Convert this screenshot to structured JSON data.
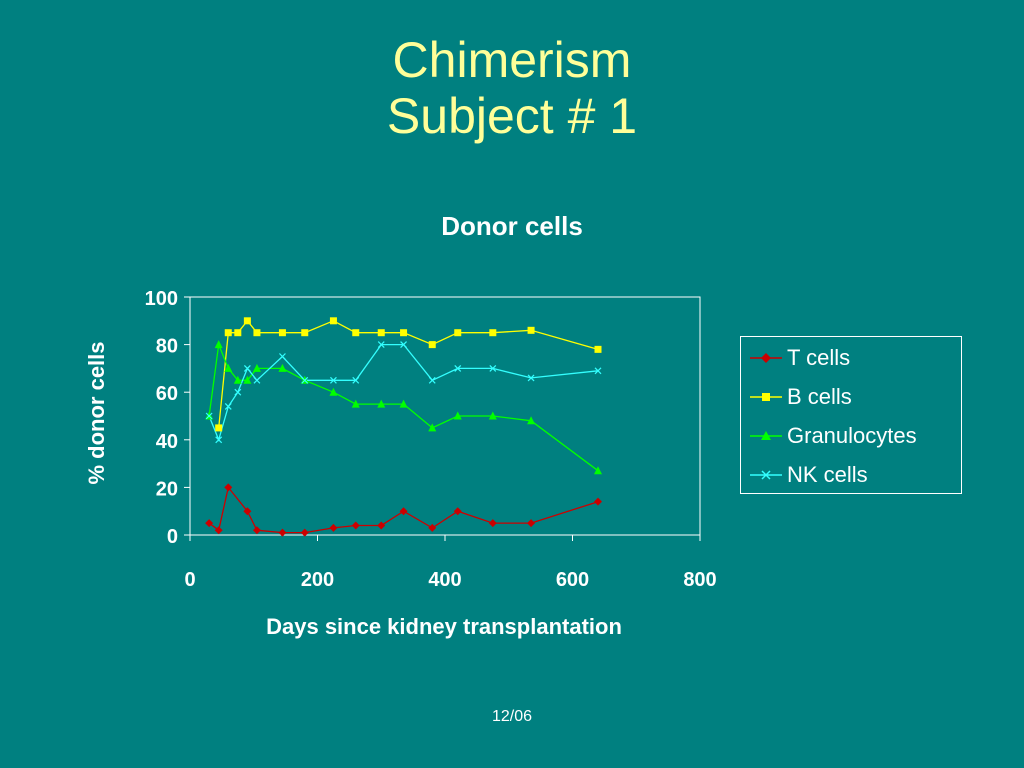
{
  "slide": {
    "title_line1": "Chimerism",
    "title_line2": "Subject # 1",
    "footer": "12/06"
  },
  "chart_data": {
    "type": "line",
    "title": "Donor cells",
    "xlabel": "Days since kidney transplantation",
    "ylabel": "% donor cells",
    "xlim": [
      0,
      800
    ],
    "ylim": [
      0,
      100
    ],
    "x_ticks": [
      0,
      200,
      400,
      600,
      800
    ],
    "y_ticks": [
      0,
      20,
      40,
      60,
      80,
      100
    ],
    "grid": false,
    "legend_position": "right",
    "series": [
      {
        "name": "T cells",
        "color": "#cc0000",
        "marker": "diamond",
        "x": [
          30,
          45,
          60,
          90,
          105,
          145,
          180,
          225,
          260,
          300,
          335,
          380,
          420,
          475,
          535,
          640
        ],
        "y": [
          5,
          2,
          20,
          10,
          2,
          1,
          1,
          3,
          4,
          4,
          10,
          3,
          10,
          5,
          5,
          14
        ]
      },
      {
        "name": "B cells",
        "color": "#ffff00",
        "marker": "square",
        "x": [
          45,
          60,
          75,
          90,
          105,
          145,
          180,
          225,
          260,
          300,
          335,
          380,
          420,
          475,
          535,
          640
        ],
        "y": [
          45,
          85,
          85,
          90,
          85,
          85,
          85,
          90,
          85,
          85,
          85,
          80,
          85,
          85,
          86,
          78
        ]
      },
      {
        "name": "Granulocytes",
        "color": "#00ff00",
        "marker": "triangle",
        "x": [
          30,
          45,
          60,
          75,
          90,
          105,
          145,
          180,
          225,
          260,
          300,
          335,
          380,
          420,
          475,
          535,
          640
        ],
        "y": [
          50,
          80,
          70,
          65,
          65,
          70,
          70,
          65,
          60,
          55,
          55,
          55,
          45,
          50,
          50,
          48,
          27
        ]
      },
      {
        "name": "NK cells",
        "color": "#33ffff",
        "marker": "x",
        "x": [
          30,
          45,
          60,
          75,
          90,
          105,
          145,
          180,
          225,
          260,
          300,
          335,
          380,
          420,
          475,
          535,
          640
        ],
        "y": [
          50,
          40,
          54,
          60,
          70,
          65,
          75,
          65,
          65,
          65,
          80,
          80,
          65,
          70,
          70,
          66,
          69
        ]
      }
    ]
  }
}
